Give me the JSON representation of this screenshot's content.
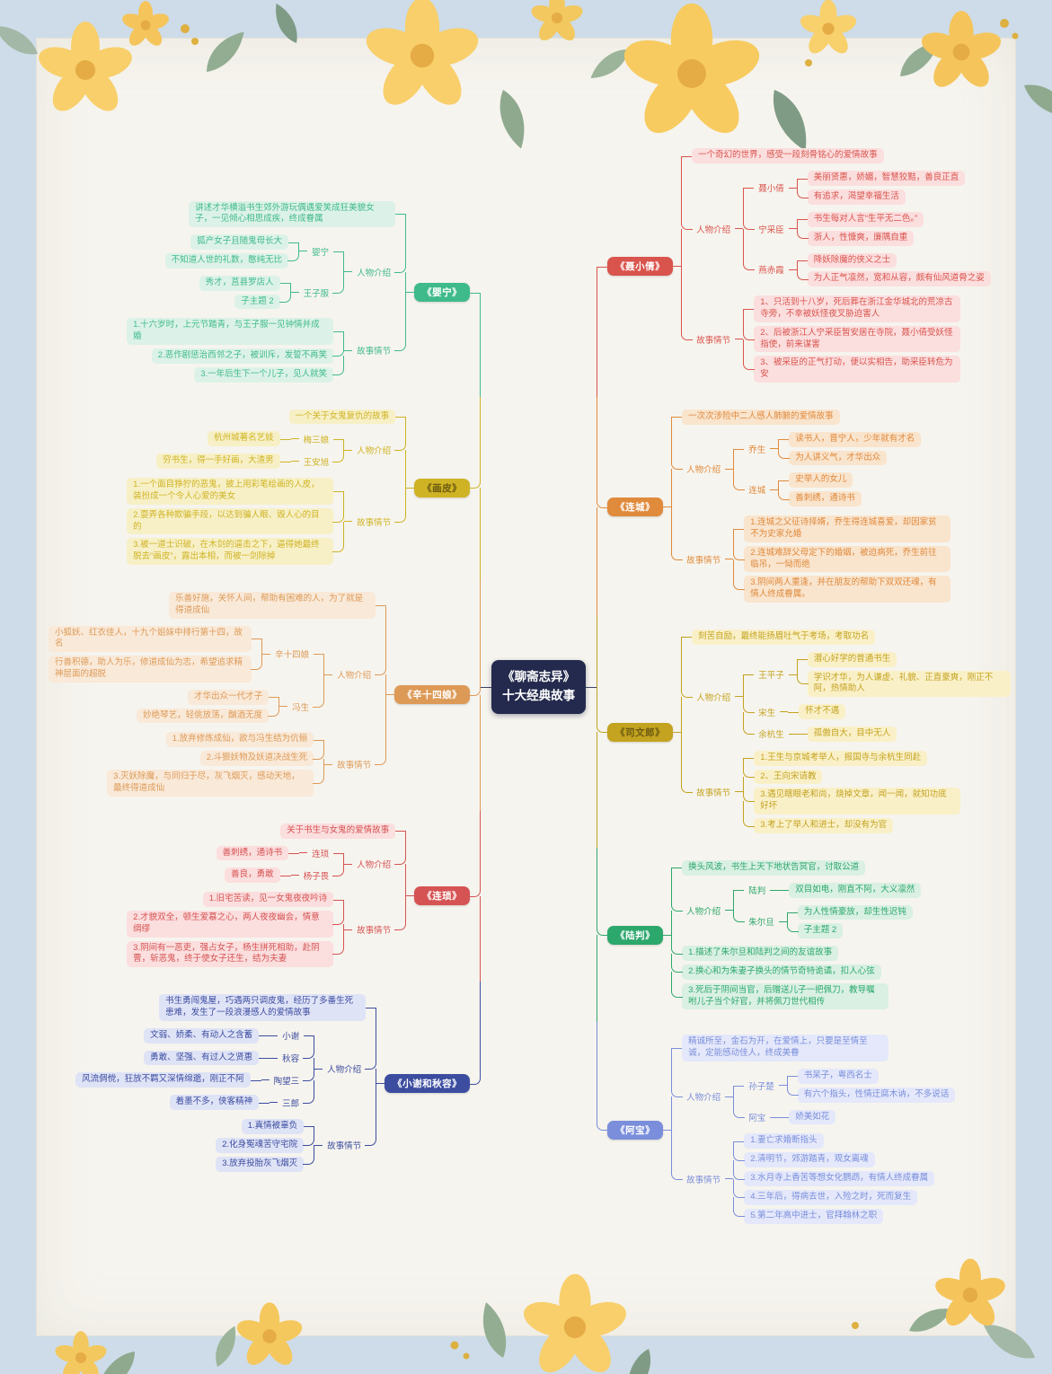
{
  "center": {
    "line1": "《聊斋志异》",
    "line2": "十大经典故事"
  },
  "palette": {
    "paper": "#f6f4ee",
    "frame": "#cddce8",
    "center_node": "#232a4d",
    "flower_yellow": "#f8cf6b",
    "leaf_green": "#8fa98f"
  },
  "left_branches": [
    {
      "name": "《婴宁》",
      "color": "#3fba8b",
      "light": "#dcf2e8",
      "children": [
        {
          "t": "讲述才华横溢书生郊外游玩偶遇爱笑成狂美貌女子，一见倾心相思成疾，终成眷属"
        },
        {
          "t": "人物介绍",
          "kids": [
            {
              "t": "婴宁",
              "kids": [
                {
                  "t": "狐产女子且随鬼母长大"
                },
                {
                  "t": "不知道人世的礼数，憨纯无比"
                }
              ]
            },
            {
              "t": "王子服",
              "kids": [
                {
                  "t": "秀才，莒县罗店人"
                },
                {
                  "t": "子主题 2"
                }
              ]
            }
          ]
        },
        {
          "t": "故事情节",
          "kids": [
            {
              "t": "1.十六岁时，上元节踏青，与王子服一见钟情并成婚"
            },
            {
              "t": "2.恶作剧惩治西邻之子，被训斥，发誓不再笑"
            },
            {
              "t": "3.一年后生下一个儿子，见人就笑"
            }
          ]
        }
      ]
    },
    {
      "name": "《画皮》",
      "color": "#cfb324",
      "light": "#f7f0c6",
      "text_color": "#6b5a10",
      "children": [
        {
          "t": "一个关于女鬼复仇的故事"
        },
        {
          "t": "人物介绍",
          "kids": [
            {
              "t": "梅三娘",
              "kids": [
                {
                  "t": "杭州城著名艺妓"
                }
              ]
            },
            {
              "t": "王安旭",
              "kids": [
                {
                  "t": "穷书生，得一手好画，大渣男"
                }
              ]
            }
          ]
        },
        {
          "t": "故事情节",
          "kids": [
            {
              "t": "1.一个面目狰狞的恶鬼，披上用彩笔绘画的人皮，装扮成一个令人心爱的美女"
            },
            {
              "t": "2.耍弄各种欺骗手段，以达到骗人眼、毁人心的目的"
            },
            {
              "t": "3.被一道士识破，在木剑的逼击之下，逼得她最终脱去“画皮”，露出本相，而被一剑除掉"
            }
          ]
        }
      ]
    },
    {
      "name": "《辛十四娘》",
      "color": "#dd9a57",
      "light": "#f9e9d8",
      "children": [
        {
          "t": "乐善好施，关怀人间，帮助有困难的人，为了就是得道成仙"
        },
        {
          "t": "人物介绍",
          "kids": [
            {
              "t": "辛十四娘",
              "kids": [
                {
                  "t": "小狐妖、红衣佳人，十九个姐妹中排行第十四，故名"
                },
                {
                  "t": "行善积德，助人为乐，修道成仙为志，希望追求精神层面的超脱"
                }
              ]
            },
            {
              "t": "冯生",
              "kids": [
                {
                  "t": "才华出众一代才子"
                },
                {
                  "t": "妙绝琴艺，轻佻放荡，酗酒无度"
                }
              ]
            }
          ]
        },
        {
          "t": "故事情节",
          "kids": [
            {
              "t": "1.放弃修炼成仙，欲与冯生结为伉俪"
            },
            {
              "t": "2.斗狠妖物及妖道决战生死"
            },
            {
              "t": "3.灭妖除魔，与同归于尽，灰飞烟灭，感动天地，最终得道成仙"
            }
          ]
        }
      ]
    },
    {
      "name": "《连琐》",
      "color": "#d65353",
      "light": "#fbdede",
      "children": [
        {
          "t": "关于书生与女鬼的爱情故事"
        },
        {
          "t": "人物介绍",
          "kids": [
            {
              "t": "连琐",
              "kids": [
                {
                  "t": "善刺绣，通诗书"
                }
              ]
            },
            {
              "t": "杨子畏",
              "kids": [
                {
                  "t": "善良，勇敢"
                }
              ]
            }
          ]
        },
        {
          "t": "故事情节",
          "kids": [
            {
              "t": "1.旧宅苦读，见一女鬼夜夜吟诗"
            },
            {
              "t": "2.才貌双全，顿生爱慕之心，两人夜夜幽会，情意绸缪"
            },
            {
              "t": "3.阴间有一恶吏，强占女子，杨生拼死相助，赴阴曹，斩恶鬼，终于使女子还生，结为夫妻"
            }
          ]
        }
      ]
    },
    {
      "name": "《小谢和秋容》",
      "color": "#3c4da0",
      "light": "#dfe3f6",
      "children": [
        {
          "t": "书生勇闯鬼屋，巧遇两只调皮鬼，经历了多番生死患难，发生了一段浪漫感人的爱情故事"
        },
        {
          "t": "人物介绍",
          "kids": [
            {
              "t": "小谢",
              "kids": [
                {
                  "t": "文弱、娇柔、有动人之含蓄"
                }
              ]
            },
            {
              "t": "秋容",
              "kids": [
                {
                  "t": "勇敢、坚强、有过人之贤惠"
                }
              ]
            },
            {
              "t": "陶望三",
              "kids": [
                {
                  "t": "风流倜傥，狂放不羁又深情绵邈，刚正不阿"
                }
              ]
            },
            {
              "t": "三郎",
              "kids": [
                {
                  "t": "着墨不多，侠客精神"
                }
              ]
            }
          ]
        },
        {
          "t": "故事情节",
          "kids": [
            {
              "t": "1.真情被辜负"
            },
            {
              "t": "2.化身冤魂苦守宅院"
            },
            {
              "t": "3.放弃投胎灰飞烟灭"
            }
          ]
        }
      ]
    }
  ],
  "right_branches": [
    {
      "name": "《聂小倩》",
      "color": "#d9544d",
      "light": "#fbdede",
      "children": [
        {
          "t": "一个奇幻的世界，感受一段刻骨铭心的爱情故事"
        },
        {
          "t": "人物介绍",
          "kids": [
            {
              "t": "聂小倩",
              "kids": [
                {
                  "t": "美丽贤惠，娇媚，智慧狡黠，善良正直"
                },
                {
                  "t": "有追求，渴望幸福生活"
                }
              ]
            },
            {
              "t": "宁采臣",
              "kids": [
                {
                  "t": "书生每对人言“生平无二色。”"
                },
                {
                  "t": "浙人，性慷爽，廉隅自重"
                }
              ]
            },
            {
              "t": "燕赤霞",
              "kids": [
                {
                  "t": "降妖除魔的侠义之士"
                },
                {
                  "t": "为人正气凛然，宽和从容，颇有仙风道骨之姿"
                }
              ]
            }
          ]
        },
        {
          "t": "故事情节",
          "kids": [
            {
              "t": "1、只活到十八岁，死后葬在浙江金华城北的荒凉古寺旁，不幸被妖怪夜叉胁迫害人"
            },
            {
              "t": "2、后被浙江人宁采臣暂安居在寺院，聂小倩受妖怪指使，前来谋害"
            },
            {
              "t": "3、被采臣的正气打动，便以实相告，助采臣转危为安"
            }
          ]
        }
      ]
    },
    {
      "name": "《连城》",
      "color": "#e08a3c",
      "light": "#f9e4cd",
      "children": [
        {
          "t": "一次次涉险中二人感人肺腑的爱情故事"
        },
        {
          "t": "人物介绍",
          "kids": [
            {
              "t": "乔生",
              "kids": [
                {
                  "t": "读书人，晋宁人，少年就有才名"
                },
                {
                  "t": "为人讲义气，才华出众"
                }
              ]
            },
            {
              "t": "连城",
              "kids": [
                {
                  "t": "史举人的女儿"
                },
                {
                  "t": "善刺绣，通诗书"
                }
              ]
            }
          ]
        },
        {
          "t": "故事情节",
          "kids": [
            {
              "t": "1.连城之父征诗择婿，乔生得连城喜爱，却因家贫不为史家允婚"
            },
            {
              "t": "2.连城难辞父母定下的婚姻，被迫病死，乔生前往临吊，一恸而绝"
            },
            {
              "t": "3.阴间两人重逢，并在朋友的帮助下双双还魂，有情人终成眷属。"
            }
          ]
        }
      ]
    },
    {
      "name": "《司文郎》",
      "color": "#c3a31f",
      "light": "#faf0c8",
      "text_color": "#6b5a10",
      "children": [
        {
          "t": "刻苦自励，最终能扬眉吐气于考场，考取功名"
        },
        {
          "t": "人物介绍",
          "kids": [
            {
              "t": "王平子",
              "kids": [
                {
                  "t": "潜心好学的普通书生"
                },
                {
                  "t": "学识才华，为人谦虚、礼貌、正直豪爽，刚正不阿，热情助人"
                }
              ]
            },
            {
              "t": "宋生",
              "kids": [
                {
                  "t": "怀才不遇"
                }
              ]
            },
            {
              "t": "余杭生",
              "kids": [
                {
                  "t": "孤傲自大，目中无人"
                }
              ]
            }
          ]
        },
        {
          "t": "故事情节",
          "kids": [
            {
              "t": "1.王生与京城考举人，报国寺与余杭生同赴"
            },
            {
              "t": "2、王向宋请教"
            },
            {
              "t": "3.遇见瞎眼老和尚，烧掉文章，闻一闻，就知功底好坏"
            },
            {
              "t": "3.考上了举人和进士，却没有为官"
            }
          ]
        }
      ]
    },
    {
      "name": "《陆判》",
      "color": "#2da86d",
      "light": "#d9f0e3",
      "children": [
        {
          "t": "换头风波，书生上天下地状告冥官，讨取公道"
        },
        {
          "t": "人物介绍",
          "kids": [
            {
              "t": "陆判",
              "kids": [
                {
                  "t": "双目如电，刚直不阿，大义凛然"
                }
              ]
            },
            {
              "t": "朱尔旦",
              "kids": [
                {
                  "t": "为人性情豪放，却生性迟钝"
                },
                {
                  "t": "子主题 2"
                }
              ]
            }
          ]
        },
        {
          "t": "1.描述了朱尔旦和陆判之间的友谊故事"
        },
        {
          "t": "2.换心和为朱妻子换头的情节奇特诡谲，扣人心弦"
        },
        {
          "t": "3.死后于阴间当官，后赠送儿子一把佩刀，教导嘱咐儿子当个好官，并将佩刀世代相传"
        }
      ]
    },
    {
      "name": "《阿宝》",
      "color": "#7a8edb",
      "light": "#e4e8fa",
      "children": [
        {
          "t": "精诚所至，金石为开，在爱情上，只要是至情至诚，定能感动佳人，终成美眷"
        },
        {
          "t": "人物介绍",
          "kids": [
            {
              "t": "孙子楚",
              "kids": [
                {
                  "t": "书呆子，粤西名士"
                },
                {
                  "t": "有六个指头，性情迂腐木讷，不多说话"
                }
              ]
            },
            {
              "t": "阿宝",
              "kids": [
                {
                  "t": "娇美如花"
                }
              ]
            }
          ]
        },
        {
          "t": "故事情节",
          "kids": [
            {
              "t": "1.妻亡求婚断指头"
            },
            {
              "t": "2.清明节，郊游踏青，观女离魂"
            },
            {
              "t": "3.水月寺上香苦等想女化鹦鹉，有情人终成眷属"
            },
            {
              "t": "4.三年后，得病去世，入殓之时，死而复生"
            },
            {
              "t": "5.第二年高中进士，官拜翰林之职"
            }
          ]
        }
      ]
    }
  ]
}
